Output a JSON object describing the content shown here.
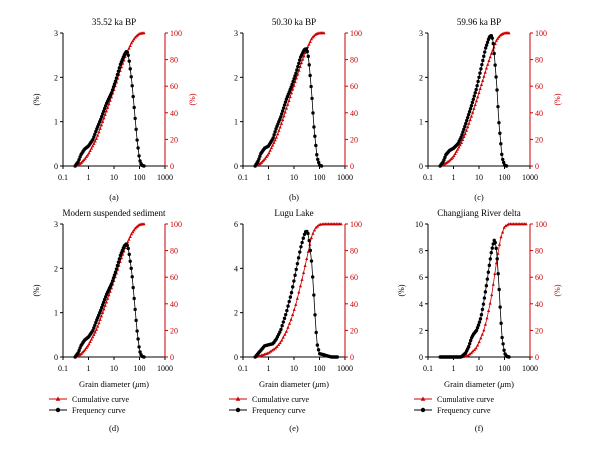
{
  "legend": {
    "cumulative_label": "Cumulative curve",
    "frequency_label": "Frequency curve"
  },
  "colors": {
    "cumulative": "#cc0000",
    "frequency": "#000000",
    "axis": "#000000"
  },
  "chart_data": [
    {
      "type": "line",
      "panel_label": "(a)",
      "title": "35.52 ka BP",
      "xlabel": "",
      "ylabel_left": "(%)",
      "ylabel_right": "(%)",
      "x_scale": "log",
      "xlim": [
        0.1,
        1000
      ],
      "x_ticks": [
        "0.1",
        "1",
        "10",
        "100",
        "1000"
      ],
      "ylim_left": [
        0,
        3
      ],
      "y_ticks_left": [
        "0",
        "1",
        "2",
        "3"
      ],
      "ylim_right": [
        0,
        100
      ],
      "y_ticks_right": [
        "0",
        "20",
        "40",
        "60",
        "80",
        "100"
      ],
      "legend_shown": false,
      "series": [
        {
          "name": "Frequency curve",
          "axis": "left",
          "x": [
            0.3,
            0.4,
            0.5,
            0.7,
            1,
            1.5,
            2,
            3,
            5,
            8,
            12,
            18,
            25,
            30,
            35,
            40,
            50,
            60,
            80,
            100,
            120,
            150
          ],
          "y": [
            0,
            0.1,
            0.25,
            0.38,
            0.45,
            0.6,
            0.8,
            1.05,
            1.4,
            1.65,
            1.95,
            2.3,
            2.5,
            2.58,
            2.55,
            2.35,
            1.9,
            1.4,
            0.6,
            0.15,
            0.02,
            0
          ]
        },
        {
          "name": "Cumulative curve",
          "axis": "right",
          "x": [
            0.3,
            0.5,
            0.7,
            1,
            2,
            3,
            5,
            8,
            12,
            20,
            30,
            40,
            50,
            70,
            100,
            150
          ],
          "y": [
            0,
            2,
            5,
            9,
            20,
            29,
            41,
            52,
            62,
            75,
            84,
            89,
            93,
            97,
            99.5,
            100
          ]
        }
      ]
    },
    {
      "type": "line",
      "panel_label": "(b)",
      "title": "50.30 ka BP",
      "xlabel": "",
      "ylabel_left": "",
      "ylabel_right": "",
      "x_scale": "log",
      "xlim": [
        0.1,
        1000
      ],
      "x_ticks": [
        "0.1",
        "1",
        "10",
        "100",
        "1000"
      ],
      "ylim_left": [
        0,
        3
      ],
      "y_ticks_left": [
        "0",
        "1",
        "2",
        "3"
      ],
      "ylim_right": [
        0,
        100
      ],
      "y_ticks_right": [
        "0",
        "20",
        "40",
        "60",
        "80",
        "100"
      ],
      "legend_shown": false,
      "series": [
        {
          "name": "Frequency curve",
          "axis": "left",
          "x": [
            0.3,
            0.4,
            0.5,
            0.7,
            1,
            1.5,
            2,
            3,
            5,
            8,
            12,
            18,
            25,
            30,
            35,
            40,
            50,
            60,
            80,
            100,
            120
          ],
          "y": [
            0,
            0.12,
            0.28,
            0.4,
            0.45,
            0.62,
            0.85,
            1.1,
            1.5,
            1.8,
            2.1,
            2.45,
            2.62,
            2.65,
            2.55,
            2.25,
            1.6,
            0.9,
            0.2,
            0.02,
            0
          ]
        },
        {
          "name": "Cumulative curve",
          "axis": "right",
          "x": [
            0.3,
            0.5,
            0.7,
            1,
            2,
            3,
            5,
            8,
            12,
            20,
            30,
            40,
            50,
            70,
            100,
            150
          ],
          "y": [
            0,
            2,
            5,
            9,
            21,
            30,
            43,
            55,
            65,
            78,
            87,
            92,
            96,
            99,
            100,
            100
          ]
        }
      ]
    },
    {
      "type": "line",
      "panel_label": "(c)",
      "title": "59.96 ka BP",
      "xlabel": "",
      "ylabel_left": "",
      "ylabel_right": "(%)",
      "x_scale": "log",
      "xlim": [
        0.1,
        1000
      ],
      "x_ticks": [
        "0.1",
        "1",
        "10",
        "100",
        "1000"
      ],
      "ylim_left": [
        0,
        3
      ],
      "y_ticks_left": [
        "0",
        "1",
        "2",
        "3"
      ],
      "ylim_right": [
        0,
        100
      ],
      "y_ticks_right": [
        "0",
        "20",
        "40",
        "60",
        "80",
        "100"
      ],
      "legend_shown": false,
      "series": [
        {
          "name": "Frequency curve",
          "axis": "left",
          "x": [
            0.3,
            0.4,
            0.5,
            0.7,
            1,
            1.5,
            2,
            3,
            5,
            8,
            12,
            18,
            25,
            30,
            35,
            40,
            50,
            60,
            80,
            100,
            120
          ],
          "y": [
            0,
            0.1,
            0.25,
            0.35,
            0.4,
            0.5,
            0.65,
            0.95,
            1.35,
            1.75,
            2.2,
            2.65,
            2.9,
            2.95,
            2.85,
            2.5,
            1.8,
            1.0,
            0.2,
            0.02,
            0
          ]
        },
        {
          "name": "Cumulative curve",
          "axis": "right",
          "x": [
            0.3,
            0.5,
            0.7,
            1,
            2,
            3,
            5,
            8,
            12,
            20,
            30,
            40,
            50,
            70,
            100,
            150
          ],
          "y": [
            0,
            2,
            4,
            7,
            17,
            25,
            37,
            49,
            60,
            74,
            84,
            90,
            95,
            98.5,
            100,
            100
          ]
        }
      ]
    },
    {
      "type": "line",
      "panel_label": "(d)",
      "title": "Modern suspended sediment",
      "xlabel": "Grain diameter (μm)",
      "ylabel_left": "(%)",
      "ylabel_right": "",
      "x_scale": "log",
      "xlim": [
        0.1,
        1000
      ],
      "x_ticks": [
        "0.1",
        "1",
        "10",
        "100",
        "1000"
      ],
      "ylim_left": [
        0,
        3
      ],
      "y_ticks_left": [
        "0",
        "1",
        "2",
        "3"
      ],
      "ylim_right": [
        0,
        100
      ],
      "y_ticks_right": [
        "0",
        "20",
        "40",
        "60",
        "80",
        "100"
      ],
      "legend_shown": true,
      "series": [
        {
          "name": "Frequency curve",
          "axis": "left",
          "x": [
            0.3,
            0.4,
            0.5,
            0.7,
            1,
            1.5,
            2,
            3,
            5,
            8,
            12,
            18,
            25,
            30,
            35,
            40,
            50,
            60,
            80,
            100,
            120,
            150
          ],
          "y": [
            0,
            0.1,
            0.25,
            0.38,
            0.45,
            0.6,
            0.8,
            1.05,
            1.4,
            1.65,
            1.95,
            2.3,
            2.5,
            2.55,
            2.5,
            2.3,
            1.9,
            1.4,
            0.6,
            0.15,
            0.02,
            0
          ]
        },
        {
          "name": "Cumulative curve",
          "axis": "right",
          "x": [
            0.3,
            0.5,
            0.7,
            1,
            2,
            3,
            5,
            8,
            12,
            20,
            30,
            40,
            50,
            70,
            100,
            150
          ],
          "y": [
            0,
            2,
            5,
            9,
            20,
            29,
            41,
            52,
            62,
            75,
            84,
            89,
            93,
            97,
            99.5,
            100
          ]
        }
      ]
    },
    {
      "type": "line",
      "panel_label": "(e)",
      "title": "Lugu Lake",
      "xlabel": "Grain diameter (μm)",
      "ylabel_left": "",
      "ylabel_right": "",
      "x_scale": "log",
      "xlim": [
        0.1,
        1000
      ],
      "x_ticks": [
        "0.1",
        "1",
        "10",
        "100",
        "1000"
      ],
      "ylim_left": [
        0,
        6
      ],
      "y_ticks_left": [
        "0",
        "2",
        "4",
        "6"
      ],
      "ylim_right": [
        0,
        100
      ],
      "y_ticks_right": [
        "0",
        "20",
        "40",
        "60",
        "80",
        "100"
      ],
      "legend_shown": true,
      "series": [
        {
          "name": "Frequency curve",
          "axis": "left",
          "x": [
            0.3,
            0.5,
            0.7,
            1,
            1.5,
            2,
            3,
            5,
            8,
            12,
            18,
            25,
            30,
            35,
            40,
            50,
            60,
            70,
            80,
            100,
            150,
            200,
            300,
            500
          ],
          "y": [
            0,
            0.3,
            0.5,
            0.55,
            0.6,
            0.8,
            1.2,
            2.0,
            2.9,
            3.9,
            4.9,
            5.5,
            5.7,
            5.6,
            5.2,
            4.2,
            2.8,
            1.5,
            0.6,
            0.15,
            0.1,
            0.05,
            0,
            0
          ]
        },
        {
          "name": "Cumulative curve",
          "axis": "right",
          "x": [
            0.3,
            0.5,
            1,
            2,
            3,
            5,
            8,
            12,
            20,
            30,
            40,
            50,
            70,
            100,
            150,
            200,
            300,
            500,
            700
          ],
          "y": [
            0,
            1,
            3,
            7,
            11,
            19,
            29,
            40,
            57,
            72,
            83,
            91,
            97,
            99.5,
            100,
            100,
            100,
            100,
            100
          ]
        }
      ]
    },
    {
      "type": "line",
      "panel_label": "(f)",
      "title": "Changjiang River delta",
      "xlabel": "Grain diameter (μm)",
      "ylabel_left": "(%)",
      "ylabel_right": "(%)",
      "x_scale": "log",
      "xlim": [
        0.1,
        1000
      ],
      "x_ticks": [
        "0.1",
        "1",
        "10",
        "100",
        "1000"
      ],
      "ylim_left": [
        0,
        10
      ],
      "y_ticks_left": [
        "0",
        "2",
        "4",
        "6",
        "8",
        "10"
      ],
      "ylim_right": [
        0,
        100
      ],
      "y_ticks_right": [
        "0",
        "20",
        "40",
        "60",
        "80",
        "100"
      ],
      "legend_shown": true,
      "series": [
        {
          "name": "Frequency curve",
          "axis": "left",
          "x": [
            0.3,
            0.5,
            1,
            2,
            3,
            4,
            5,
            6,
            8,
            10,
            12,
            15,
            20,
            25,
            30,
            35,
            40,
            45,
            50,
            60,
            70,
            80,
            100,
            120,
            150
          ],
          "y": [
            0,
            0,
            0,
            0,
            0.3,
            0.8,
            1.4,
            1.7,
            2.0,
            2.5,
            3.0,
            4.0,
            5.5,
            6.8,
            7.8,
            8.4,
            8.8,
            8.5,
            7.8,
            5.5,
            3.2,
            1.5,
            0.3,
            0.05,
            0
          ]
        },
        {
          "name": "Cumulative curve",
          "axis": "right",
          "x": [
            0.3,
            1,
            2,
            3,
            4,
            5,
            8,
            10,
            15,
            20,
            30,
            40,
            50,
            70,
            100,
            150,
            200,
            300,
            500,
            700
          ],
          "y": [
            0,
            0,
            0,
            0.5,
            1.5,
            3,
            7,
            11,
            19,
            28,
            44,
            60,
            73,
            89,
            98,
            100,
            100,
            100,
            100,
            100
          ]
        }
      ]
    }
  ]
}
